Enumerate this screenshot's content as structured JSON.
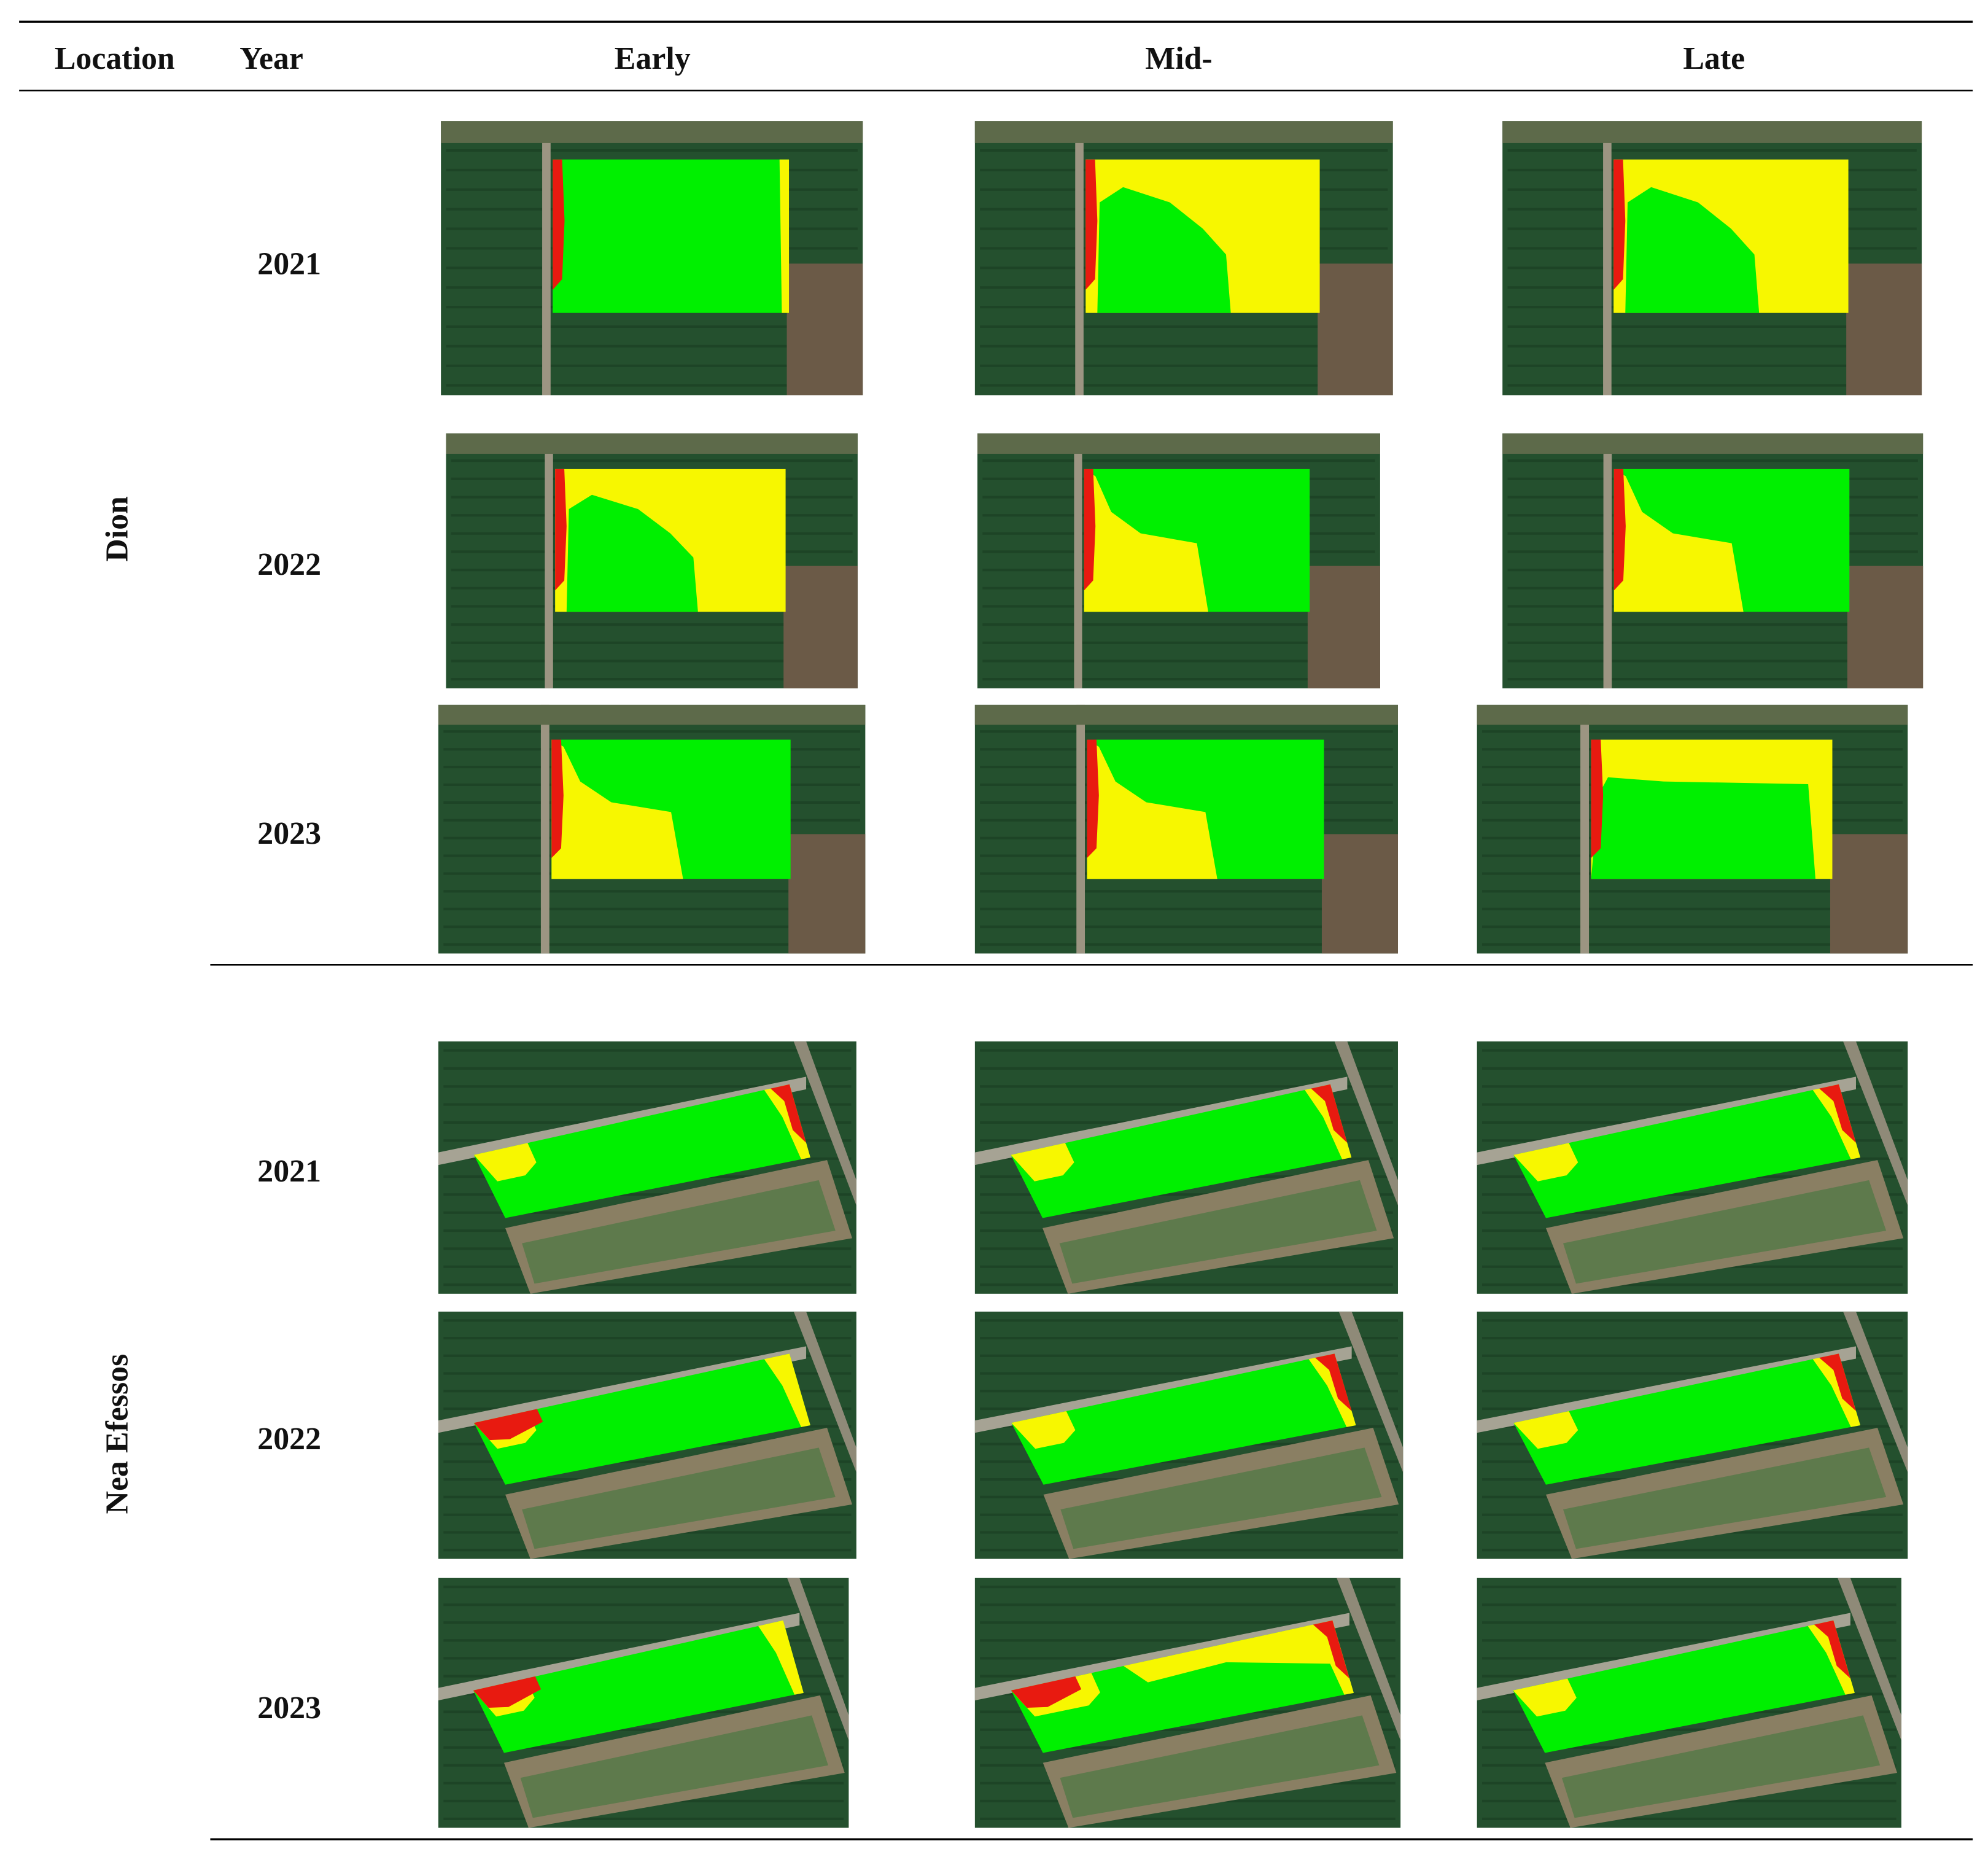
{
  "header": {
    "columns": [
      "Location",
      "Year",
      "Early",
      "Mid-",
      "Late"
    ]
  },
  "sections": [
    {
      "location": "Dion",
      "years": [
        "2021",
        "2022",
        "2023"
      ]
    },
    {
      "location": "Nea Efessos",
      "years": [
        "2021",
        "2022",
        "2023"
      ]
    }
  ]
}
